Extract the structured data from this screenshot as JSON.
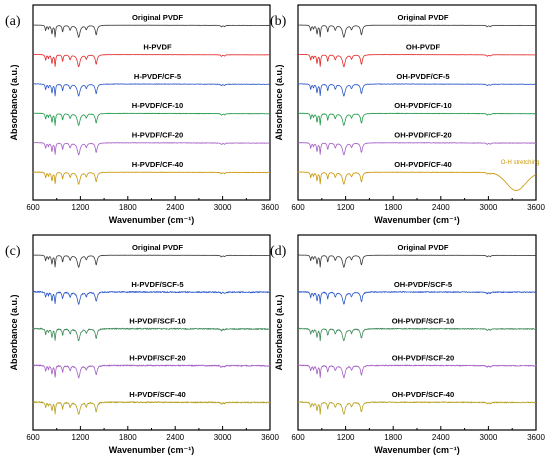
{
  "chart_data": [
    {
      "type": "line",
      "panel_label": "(a)",
      "xlabel": "Wavenumber (cm⁻¹)",
      "ylabel": "Absorbance (a.u.)",
      "xlim": [
        600,
        3600
      ],
      "xticks": [
        600,
        1200,
        1800,
        2400,
        3000,
        3600
      ],
      "series": [
        {
          "name": "Original PVDF",
          "color": "#3a3a3a",
          "noise": 0.01,
          "broad_oh": 0
        },
        {
          "name": "H-PVDF",
          "color": "#e32626",
          "noise": 0.01,
          "broad_oh": 0
        },
        {
          "name": "H-PVDF/CF-5",
          "color": "#2a57c8",
          "noise": 0.02,
          "broad_oh": 0
        },
        {
          "name": "H-PVDF/CF-10",
          "color": "#1f9a4a",
          "noise": 0.02,
          "broad_oh": 0
        },
        {
          "name": "H-PVDF/CF-20",
          "color": "#a35fc4",
          "noise": 0.02,
          "broad_oh": 0
        },
        {
          "name": "H-PVDF/CF-40",
          "color": "#c9960a",
          "noise": 0.02,
          "broad_oh": 0
        }
      ]
    },
    {
      "type": "line",
      "panel_label": "(b)",
      "xlabel": "Wavenumber (cm⁻¹)",
      "ylabel": "Absorbance (a.u.)",
      "xlim": [
        600,
        3600
      ],
      "xticks": [
        600,
        1200,
        1800,
        2400,
        3000,
        3600
      ],
      "annotation": {
        "text": "O-H stretching",
        "x": 3400,
        "color": "#c9960a"
      },
      "series": [
        {
          "name": "Original PVDF",
          "color": "#3a3a3a",
          "noise": 0.01,
          "broad_oh": 0
        },
        {
          "name": "OH-PVDF",
          "color": "#e32626",
          "noise": 0.01,
          "broad_oh": 0
        },
        {
          "name": "OH-PVDF/CF-5",
          "color": "#2a57c8",
          "noise": 0.02,
          "broad_oh": 0
        },
        {
          "name": "OH-PVDF/CF-10",
          "color": "#1f9a4a",
          "noise": 0.02,
          "broad_oh": 0
        },
        {
          "name": "OH-PVDF/CF-20",
          "color": "#a35fc4",
          "noise": 0.02,
          "broad_oh": 0
        },
        {
          "name": "OH-PVDF/CF-40",
          "color": "#c9960a",
          "noise": 0.02,
          "broad_oh": 1.5
        }
      ]
    },
    {
      "type": "line",
      "panel_label": "(c)",
      "xlabel": "Wavenumber (cm⁻¹)",
      "ylabel": "Absorbance (a.u.)",
      "xlim": [
        600,
        3600
      ],
      "xticks": [
        600,
        1200,
        1800,
        2400,
        3000,
        3600
      ],
      "series": [
        {
          "name": "Original PVDF",
          "color": "#3a3a3a",
          "noise": 0.01,
          "broad_oh": 0
        },
        {
          "name": "H-PVDF/SCF-5",
          "color": "#2a57c8",
          "noise": 0.05,
          "broad_oh": 0
        },
        {
          "name": "H-PVDF/SCF-10",
          "color": "#3e8a5a",
          "noise": 0.05,
          "broad_oh": 0
        },
        {
          "name": "H-PVDF/SCF-20",
          "color": "#a35fc4",
          "noise": 0.05,
          "broad_oh": 0
        },
        {
          "name": "H-PVDF/SCF-40",
          "color": "#b5a01e",
          "noise": 0.05,
          "broad_oh": 0
        }
      ]
    },
    {
      "type": "line",
      "panel_label": "(d)",
      "xlabel": "Wavenumber (cm⁻¹)",
      "ylabel": "Absorbance (a.u.)",
      "xlim": [
        600,
        3600
      ],
      "xticks": [
        600,
        1200,
        1800,
        2400,
        3000,
        3600
      ],
      "series": [
        {
          "name": "Original PVDF",
          "color": "#3a3a3a",
          "noise": 0.01,
          "broad_oh": 0
        },
        {
          "name": "OH-PVDF/SCF-5",
          "color": "#2a57c8",
          "noise": 0.04,
          "broad_oh": 0
        },
        {
          "name": "OH-PVDF/SCF-10",
          "color": "#3e8a5a",
          "noise": 0.04,
          "broad_oh": 0
        },
        {
          "name": "OH-PVDF/SCF-20",
          "color": "#a35fc4",
          "noise": 0.04,
          "broad_oh": 0
        },
        {
          "name": "OH-PVDF/SCF-40",
          "color": "#b5a01e",
          "noise": 0.04,
          "broad_oh": 0
        }
      ]
    }
  ]
}
